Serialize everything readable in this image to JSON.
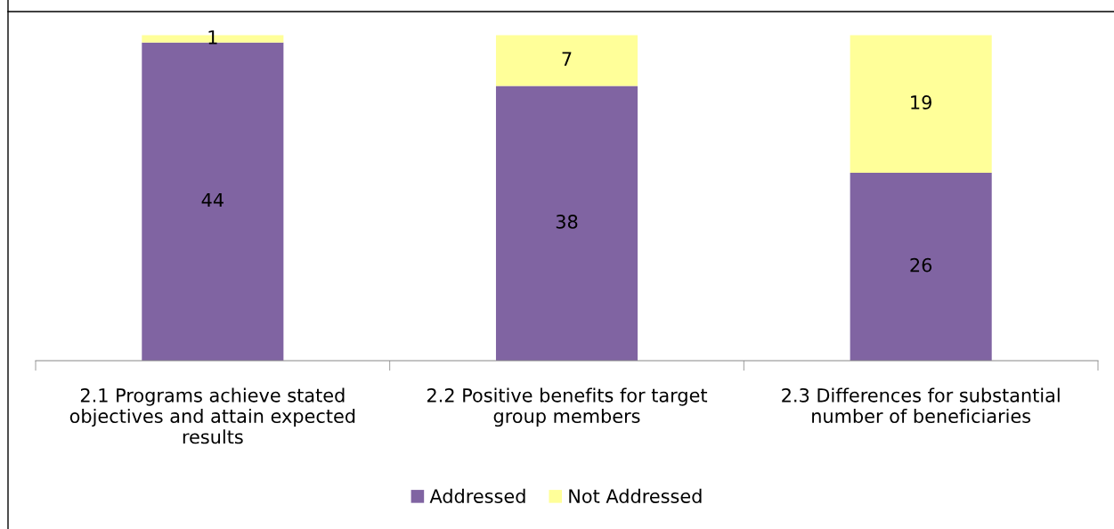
{
  "chart_data": {
    "type": "bar",
    "stacked": true,
    "data_labels": true,
    "legend": "bottom",
    "grid": false,
    "categories": [
      "2.1 Programs achieve stated\nobjectives and attain expected\nresults",
      "2.2 Positive benefits for target\ngroup members",
      "2.3 Differences for substantial\nnumber of beneficiaries"
    ],
    "series": [
      {
        "name": "Addressed",
        "color": "#8064a2",
        "values": [
          44,
          38,
          26
        ]
      },
      {
        "name": "Not Addressed",
        "color": "#ffff99",
        "values": [
          1,
          7,
          19
        ]
      }
    ]
  }
}
